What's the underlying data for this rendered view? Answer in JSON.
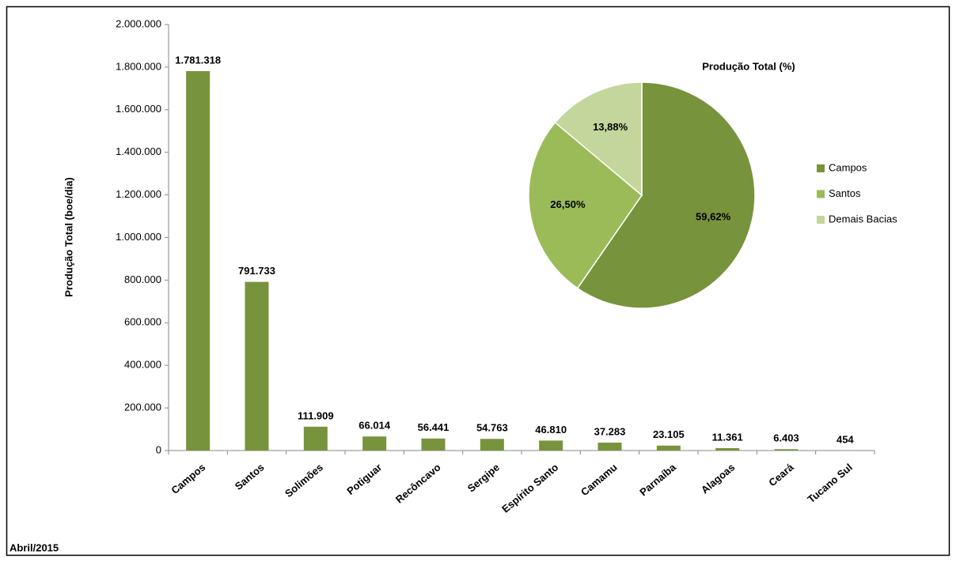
{
  "chart_data": [
    {
      "type": "bar",
      "y_label": "Produção Total (boe/dia)",
      "annotation": "Abril/2015",
      "categories": [
        "Campos",
        "Santos",
        "Solimões",
        "Potiguar",
        "Recôncavo",
        "Sergipe",
        "Espírito Santo",
        "Camamu",
        "Parnaíba",
        "Alagoas",
        "Ceará",
        "Tucano Sul"
      ],
      "values": [
        1781318,
        791733,
        111909,
        66014,
        56441,
        54763,
        46810,
        37283,
        23105,
        11361,
        6403,
        454
      ],
      "value_labels": [
        "1.781.318",
        "791.733",
        "111.909",
        "66.014",
        "56.441",
        "54.763",
        "46.810",
        "37.283",
        "23.105",
        "11.361",
        "6.403",
        "454"
      ],
      "color": "#77933c",
      "ylim": [
        0,
        2000000
      ],
      "yticks": [
        0,
        {
          "value": 200000,
          "label": "200.000"
        },
        {
          "value": 400000,
          "label": "400.000"
        },
        {
          "value": 600000,
          "label": "600.000"
        },
        {
          "value": 800000,
          "label": "800.000"
        },
        {
          "value": 1000000,
          "label": "1.000.000"
        },
        {
          "value": 1200000,
          "label": "1.200.000"
        },
        {
          "value": 1400000,
          "label": "1.400.000"
        },
        {
          "value": 1600000,
          "label": "1.600.000"
        },
        {
          "value": 1800000,
          "label": "1.800.000"
        },
        {
          "value": 2000000,
          "label": "2.000.000"
        }
      ],
      "grid": false
    },
    {
      "type": "pie",
      "title": "Produção Total (%)",
      "categories": [
        "Campos",
        "Santos",
        "Demais Bacias"
      ],
      "values": [
        59.62,
        26.5,
        13.88
      ],
      "value_labels": [
        "59,62%",
        "26,50%",
        "13,88%"
      ],
      "colors": [
        "#77933c",
        "#9bbb59",
        "#c3d69b"
      ],
      "legend": "right"
    }
  ]
}
